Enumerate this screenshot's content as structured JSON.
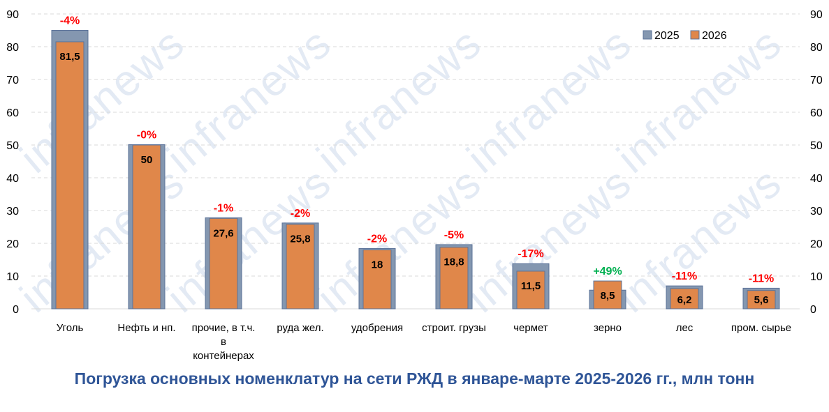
{
  "watermark": "infranews",
  "chart_data": {
    "type": "bar",
    "title": "Погрузка основных номенклатур на сети РЖД в январе-марте 2025-2026 гг., млн тонн",
    "categories": [
      "Уголь",
      "Нефть и нп.",
      "прочие, в т.ч. в контейнерах",
      "руда жел.",
      "удобрения",
      "строит. грузы",
      "чермет",
      "зерно",
      "лес",
      "пром. сырье"
    ],
    "category_lines": [
      [
        "Уголь"
      ],
      [
        "Нефть и нп."
      ],
      [
        "прочие, в т.ч.",
        "в",
        "контейнерах"
      ],
      [
        "руда жел."
      ],
      [
        "удобрения"
      ],
      [
        "строит. грузы"
      ],
      [
        "чермет"
      ],
      [
        "зерно"
      ],
      [
        "лес"
      ],
      [
        "пром. сырье"
      ]
    ],
    "series": [
      {
        "name": "2025",
        "values": [
          85.0,
          50.1,
          27.8,
          26.2,
          18.4,
          19.6,
          13.8,
          5.7,
          7.0,
          6.3
        ],
        "color": "#8497b0"
      },
      {
        "name": "2026",
        "values": [
          81.5,
          50,
          27.6,
          25.8,
          18,
          18.8,
          11.5,
          8.5,
          6.2,
          5.6
        ],
        "color": "#e0874a"
      }
    ],
    "value_labels": [
      "81,5",
      "50",
      "27,6",
      "25,8",
      "18",
      "18,8",
      "11,5",
      "8,5",
      "6,2",
      "5,6"
    ],
    "change_labels": [
      "-4%",
      "-0%",
      "-1%",
      "-2%",
      "-2%",
      "-5%",
      "-17%",
      "+49%",
      "-11%",
      "-11%"
    ],
    "change_colors": {
      "negative": "#ff0000",
      "positive": "#00b050"
    },
    "ylim": [
      0,
      90
    ],
    "yticks": [
      0,
      10,
      20,
      30,
      40,
      50,
      60,
      70,
      80,
      90
    ],
    "grid": true,
    "legend_position": "top-right",
    "xlabel": "",
    "ylabel": ""
  }
}
